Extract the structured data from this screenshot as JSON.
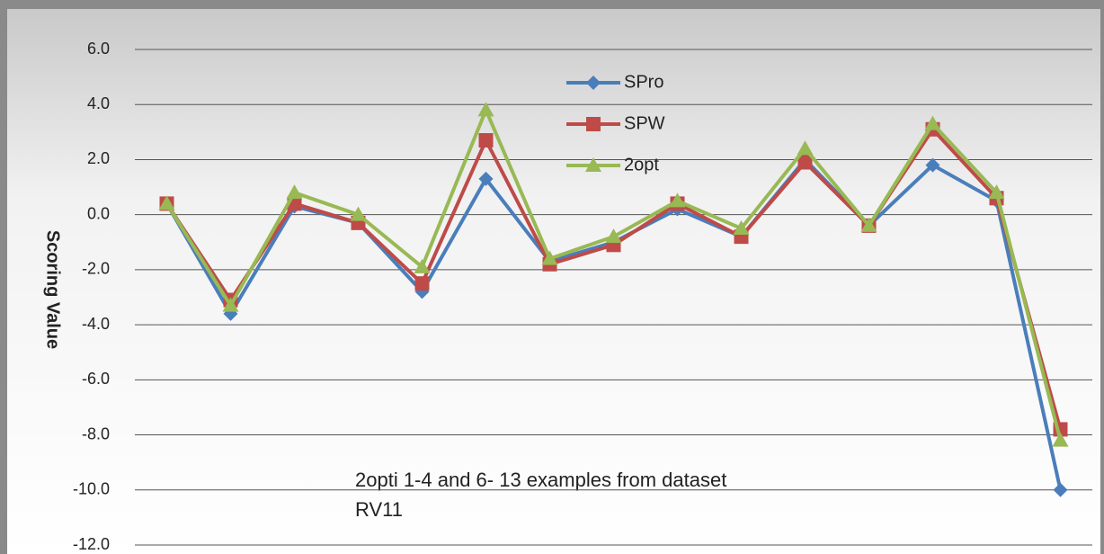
{
  "chart_data": {
    "type": "line",
    "y_label": "Scoring Value",
    "annotation": [
      "2opti  1-4 and 6- 13 examples from dataset",
      "RV11"
    ],
    "categories": [
      null,
      null,
      null,
      null,
      null,
      null,
      null,
      null,
      null,
      null,
      null,
      null,
      null,
      null,
      null
    ],
    "series": [
      {
        "name": "SPro",
        "color": "#4a7ebb",
        "marker": "diamond",
        "values": [
          0.4,
          -3.6,
          0.3,
          -0.3,
          -2.8,
          1.3,
          -1.7,
          -1.0,
          0.2,
          -0.8,
          2.0,
          -0.4,
          1.8,
          0.5,
          -10.0
        ]
      },
      {
        "name": "SPW",
        "color": "#be4b48",
        "marker": "square",
        "values": [
          0.4,
          -3.1,
          0.4,
          -0.3,
          -2.5,
          2.7,
          -1.8,
          -1.1,
          0.4,
          -0.8,
          1.9,
          -0.4,
          3.1,
          0.6,
          -7.8
        ]
      },
      {
        "name": "2opt",
        "color": "#98b954",
        "marker": "triangle",
        "values": [
          0.4,
          -3.3,
          0.8,
          0.0,
          -1.9,
          3.8,
          -1.6,
          -0.8,
          0.5,
          -0.5,
          2.4,
          -0.4,
          3.3,
          0.8,
          -8.2
        ]
      }
    ],
    "ylim": [
      -12,
      6
    ],
    "yticks": [
      {
        "value": -12,
        "label": "-12.0"
      },
      {
        "value": -10,
        "label": "-10.0"
      },
      {
        "value": -8,
        "label": "-8.0"
      },
      {
        "value": -6,
        "label": "-6.0"
      },
      {
        "value": -4,
        "label": "-4.0"
      },
      {
        "value": -2,
        "label": "-2.0"
      },
      {
        "value": 0,
        "label": "0.0"
      },
      {
        "value": 2,
        "label": "2.0"
      },
      {
        "value": 4,
        "label": "4.0"
      },
      {
        "value": 6,
        "label": "6.0"
      }
    ],
    "grid": true
  }
}
